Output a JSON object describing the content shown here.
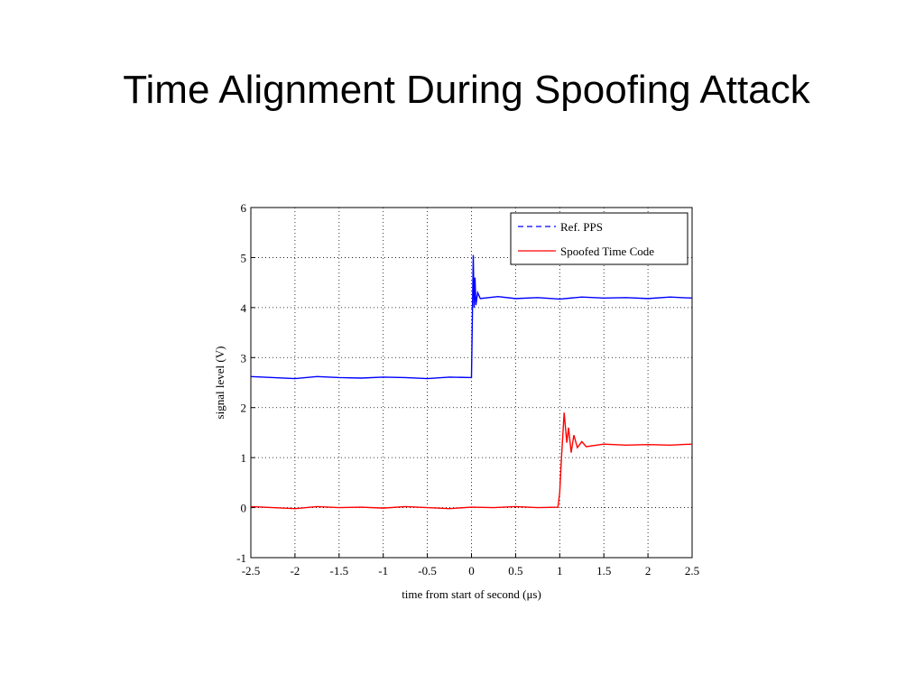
{
  "title": "Time Alignment During Spoofing Attack",
  "chart_data": {
    "type": "line",
    "x_label": "time from start of second (μs)",
    "y_label": "signal level (V)",
    "xlim": [
      -2.5,
      2.5
    ],
    "ylim": [
      -1,
      6
    ],
    "xticks": [
      -2.5,
      -2,
      -1.5,
      -1,
      -0.5,
      0,
      0.5,
      1,
      1.5,
      2,
      2.5
    ],
    "yticks": [
      -1,
      0,
      1,
      2,
      3,
      4,
      5,
      6
    ],
    "grid": true,
    "legend_position": "upper right",
    "series": [
      {
        "name": "Ref. PPS",
        "color": "#0000ff",
        "legend_dash": true,
        "x": [
          -2.5,
          -2.25,
          -2.0,
          -1.75,
          -1.5,
          -1.25,
          -1.0,
          -0.75,
          -0.5,
          -0.25,
          0.0,
          0.01,
          0.02,
          0.03,
          0.04,
          0.05,
          0.07,
          0.1,
          0.3,
          0.5,
          0.75,
          1.0,
          1.25,
          1.5,
          1.75,
          2.0,
          2.25,
          2.5
        ],
        "values": [
          2.62,
          2.6,
          2.58,
          2.62,
          2.6,
          2.59,
          2.61,
          2.6,
          2.58,
          2.61,
          2.6,
          3.8,
          5.05,
          4.0,
          4.6,
          4.05,
          4.3,
          4.18,
          4.22,
          4.18,
          4.2,
          4.17,
          4.21,
          4.19,
          4.2,
          4.18,
          4.21,
          4.19
        ]
      },
      {
        "name": "Spoofed Time Code",
        "color": "#ff0000",
        "legend_dash": false,
        "x": [
          -2.5,
          -2.25,
          -2.0,
          -1.75,
          -1.5,
          -1.25,
          -1.0,
          -0.75,
          -0.5,
          -0.25,
          0.0,
          0.25,
          0.5,
          0.75,
          0.98,
          1.0,
          1.02,
          1.05,
          1.08,
          1.1,
          1.13,
          1.16,
          1.2,
          1.25,
          1.3,
          1.5,
          1.75,
          2.0,
          2.25,
          2.5
        ],
        "values": [
          0.02,
          0.0,
          -0.02,
          0.02,
          0.0,
          0.01,
          -0.01,
          0.02,
          0.0,
          -0.02,
          0.01,
          0.0,
          0.02,
          0.0,
          0.01,
          0.3,
          1.0,
          1.9,
          1.3,
          1.6,
          1.1,
          1.45,
          1.2,
          1.32,
          1.22,
          1.27,
          1.25,
          1.26,
          1.25,
          1.27
        ]
      }
    ]
  }
}
